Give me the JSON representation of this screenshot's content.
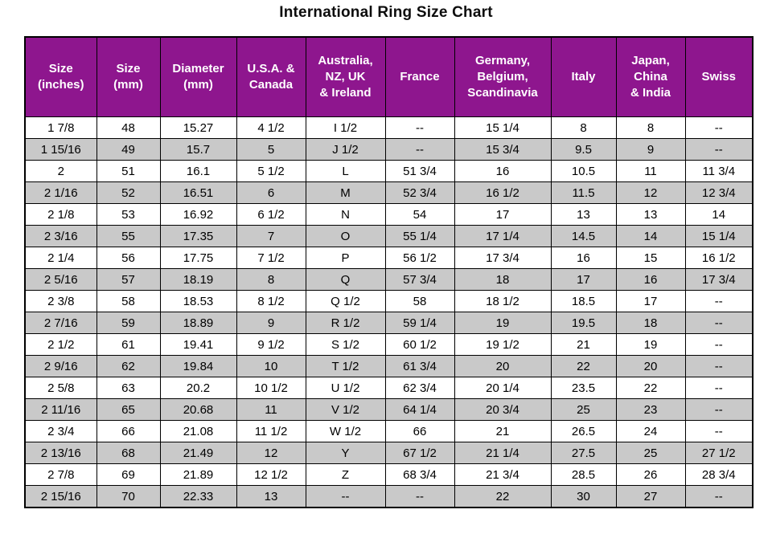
{
  "page": {
    "title": "International Ring Size Chart"
  },
  "colors": {
    "header_bg": "#8e168e",
    "header_text": "#ffffff",
    "row_alt_bg": "#c9c9c9",
    "border": "#000000"
  },
  "chart_data": {
    "type": "table",
    "title": "International Ring Size Chart",
    "headers": [
      "Size\n(inches)",
      "Size\n(mm)",
      "Diameter\n(mm)",
      "U.S.A. &\nCanada",
      "Australia,\nNZ, UK\n& Ireland",
      "France",
      "Germany,\nBelgium,\nScandinavia",
      "Italy",
      "Japan,\nChina\n& India",
      "Swiss"
    ],
    "rows": [
      [
        "1 7/8",
        "48",
        "15.27",
        "4 1/2",
        "I 1/2",
        "--",
        "15 1/4",
        "8",
        "8",
        "--"
      ],
      [
        "1 15/16",
        "49",
        "15.7",
        "5",
        "J 1/2",
        "--",
        "15 3/4",
        "9.5",
        "9",
        "--"
      ],
      [
        "2",
        "51",
        "16.1",
        "5 1/2",
        "L",
        "51 3/4",
        "16",
        "10.5",
        "11",
        "11 3/4"
      ],
      [
        "2 1/16",
        "52",
        "16.51",
        "6",
        "M",
        "52 3/4",
        "16 1/2",
        "11.5",
        "12",
        "12 3/4"
      ],
      [
        "2 1/8",
        "53",
        "16.92",
        "6 1/2",
        "N",
        "54",
        "17",
        "13",
        "13",
        "14"
      ],
      [
        "2 3/16",
        "55",
        "17.35",
        "7",
        "O",
        "55 1/4",
        "17 1/4",
        "14.5",
        "14",
        "15 1/4"
      ],
      [
        "2 1/4",
        "56",
        "17.75",
        "7 1/2",
        "P",
        "56 1/2",
        "17 3/4",
        "16",
        "15",
        "16 1/2"
      ],
      [
        "2 5/16",
        "57",
        "18.19",
        "8",
        "Q",
        "57 3/4",
        "18",
        "17",
        "16",
        "17 3/4"
      ],
      [
        "2 3/8",
        "58",
        "18.53",
        "8 1/2",
        "Q 1/2",
        "58",
        "18 1/2",
        "18.5",
        "17",
        "--"
      ],
      [
        "2 7/16",
        "59",
        "18.89",
        "9",
        "R 1/2",
        "59 1/4",
        "19",
        "19.5",
        "18",
        "--"
      ],
      [
        "2 1/2",
        "61",
        "19.41",
        "9 1/2",
        "S 1/2",
        "60 1/2",
        "19 1/2",
        "21",
        "19",
        "--"
      ],
      [
        "2 9/16",
        "62",
        "19.84",
        "10",
        "T 1/2",
        "61 3/4",
        "20",
        "22",
        "20",
        "--"
      ],
      [
        "2 5/8",
        "63",
        "20.2",
        "10 1/2",
        "U 1/2",
        "62 3/4",
        "20 1/4",
        "23.5",
        "22",
        "--"
      ],
      [
        "2 11/16",
        "65",
        "20.68",
        "11",
        "V 1/2",
        "64 1/4",
        "20 3/4",
        "25",
        "23",
        "--"
      ],
      [
        "2 3/4",
        "66",
        "21.08",
        "11 1/2",
        "W 1/2",
        "66",
        "21",
        "26.5",
        "24",
        "--"
      ],
      [
        "2 13/16",
        "68",
        "21.49",
        "12",
        "Y",
        "67 1/2",
        "21 1/4",
        "27.5",
        "25",
        "27 1/2"
      ],
      [
        "2 7/8",
        "69",
        "21.89",
        "12 1/2",
        "Z",
        "68 3/4",
        "21 3/4",
        "28.5",
        "26",
        "28 3/4"
      ],
      [
        "2 15/16",
        "70",
        "22.33",
        "13",
        "--",
        "--",
        "22",
        "30",
        "27",
        "--"
      ]
    ]
  }
}
